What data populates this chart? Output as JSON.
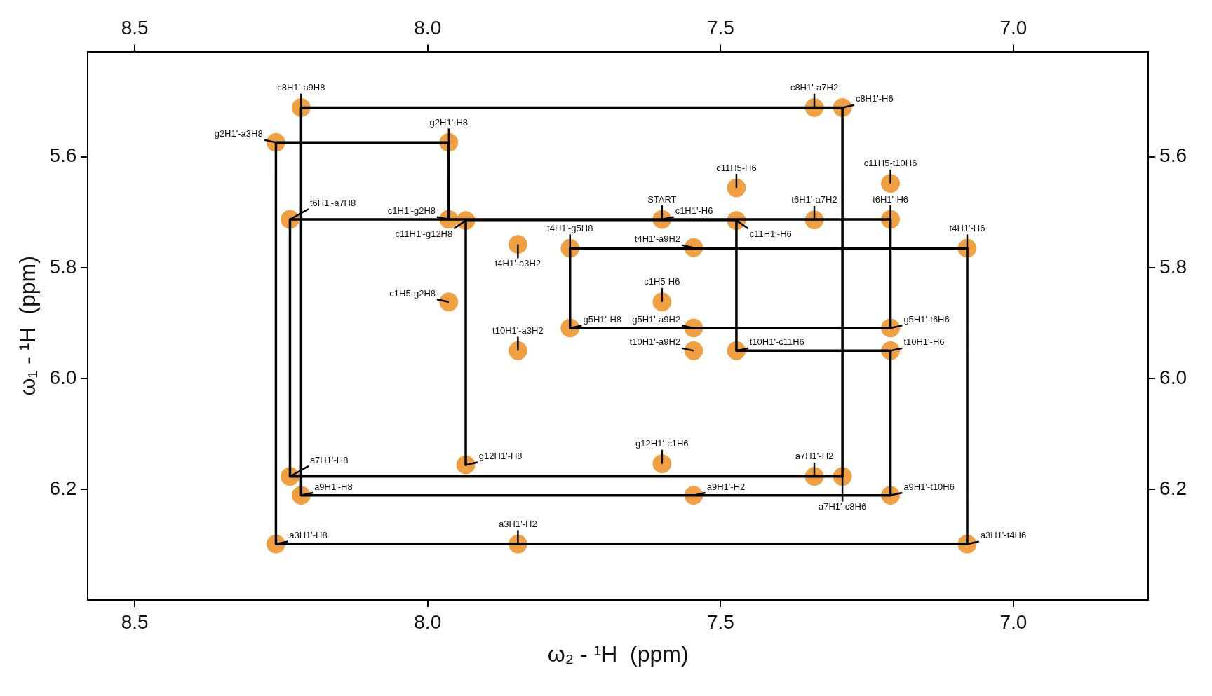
{
  "chart_data": {
    "type": "scatter",
    "xlabel": "ω₂ - ¹H  (ppm)",
    "ylabel": "ω₁ - ¹H  (ppm)",
    "xlim": [
      8.58,
      6.77
    ],
    "ylim": [
      6.4,
      5.41
    ],
    "xticks": [
      8.5,
      {
        "value": 8,
        "label": "8.0"
      },
      7.5,
      {
        "value": 7,
        "label": "7.0"
      }
    ],
    "x2lim": [
      8.58,
      6.77
    ],
    "x2ticks": [
      8.5,
      {
        "value": 8,
        "label": "8.0"
      },
      7.5,
      {
        "value": 7,
        "label": "7.0"
      }
    ],
    "yticks": [
      5.6,
      5.8,
      {
        "value": 6,
        "label": "6.0"
      },
      6.2
    ],
    "y2lim": [
      6.4,
      5.41
    ],
    "y2ticks": [
      5.6,
      5.8,
      {
        "value": 6,
        "label": "6.0"
      },
      6.2
    ],
    "grid": false,
    "legend": false,
    "series": [
      {
        "type": "scatter",
        "color": "#f0a040",
        "marker": "circle",
        "x": [
          8.216,
          8.259,
          7.964,
          8.235,
          7.964,
          7.935,
          7.6,
          7.473,
          7.34,
          7.21,
          7.473,
          7.21,
          7.34,
          7.292,
          7.079,
          7.757,
          7.846,
          7.546,
          7.964,
          7.6,
          7.757,
          7.546,
          7.21,
          7.546,
          7.473,
          7.21,
          7.846,
          7.935,
          7.6,
          8.235,
          7.34,
          7.292,
          8.216,
          7.546,
          7.21,
          8.259,
          7.846,
          7.079
        ],
        "values": [
          5.511,
          5.574,
          5.574,
          5.713,
          5.713,
          5.715,
          5.713,
          5.715,
          5.714,
          5.713,
          5.656,
          5.648,
          5.511,
          5.511,
          5.765,
          5.765,
          5.758,
          5.764,
          5.862,
          5.862,
          5.909,
          5.909,
          5.909,
          5.95,
          5.95,
          5.95,
          5.95,
          6.156,
          6.154,
          6.177,
          6.177,
          6.177,
          6.211,
          6.211,
          6.211,
          6.299,
          6.299,
          6.299
        ]
      },
      {
        "type": "line",
        "color": "#000000",
        "marker": "none",
        "line_style": "solid",
        "x": [
          7.6,
          7.964,
          7.964,
          8.259,
          8.259,
          7.079,
          7.079,
          7.757,
          7.757,
          7.21,
          7.21,
          8.235,
          8.235,
          7.292,
          7.292,
          8.216,
          8.216,
          7.21,
          7.21,
          7.473,
          7.473,
          7.935,
          7.935
        ],
        "values": [
          5.713,
          5.713,
          5.574,
          5.574,
          6.299,
          6.299,
          5.765,
          5.765,
          5.909,
          5.909,
          5.713,
          5.713,
          6.177,
          6.177,
          5.511,
          5.511,
          6.211,
          6.211,
          5.95,
          5.95,
          5.715,
          5.715,
          6.156
        ]
      }
    ],
    "annotations": [
      {
        "text": "START",
        "x": 7.6,
        "y": 5.713
      },
      {
        "text": "c8H1'-a9H8",
        "x": 8.216,
        "y": 5.511
      },
      {
        "text": "g2H1'-a3H8",
        "x": 8.259,
        "y": 5.574
      },
      {
        "text": "g2H1'-H8",
        "x": 7.964,
        "y": 5.574
      },
      {
        "text": "t6H1'-a7H8",
        "x": 8.235,
        "y": 5.713
      },
      {
        "text": "c1H1'-g2H8",
        "x": 7.964,
        "y": 5.713
      },
      {
        "text": "c11H1'-g12H8",
        "x": 7.935,
        "y": 5.715
      },
      {
        "text": "c1H1'-H6",
        "x": 7.6,
        "y": 5.713
      },
      {
        "text": "c11H1'-H6",
        "x": 7.473,
        "y": 5.715
      },
      {
        "text": "t6H1'-a7H2",
        "x": 7.34,
        "y": 5.714
      },
      {
        "text": "t6H1'-H6",
        "x": 7.21,
        "y": 5.713
      },
      {
        "text": "c11H5-H6",
        "x": 7.473,
        "y": 5.656
      },
      {
        "text": "c11H5-t10H6",
        "x": 7.21,
        "y": 5.648
      },
      {
        "text": "c8H1'-a7H2",
        "x": 7.34,
        "y": 5.511
      },
      {
        "text": "c8H1'-H6",
        "x": 7.292,
        "y": 5.511
      },
      {
        "text": "t4H1'-H6",
        "x": 7.079,
        "y": 5.765
      },
      {
        "text": "t4H1'-g5H8",
        "x": 7.757,
        "y": 5.765
      },
      {
        "text": "t4H1'-a3H2",
        "x": 7.846,
        "y": 5.758
      },
      {
        "text": "t4H1'-a9H2",
        "x": 7.546,
        "y": 5.764
      },
      {
        "text": "c1H5-g2H8",
        "x": 7.964,
        "y": 5.862
      },
      {
        "text": "c1H5-H6",
        "x": 7.6,
        "y": 5.862
      },
      {
        "text": "g5H1'-H8",
        "x": 7.757,
        "y": 5.909
      },
      {
        "text": "g5H1'-a9H2",
        "x": 7.546,
        "y": 5.909
      },
      {
        "text": "g5H1'-t6H6",
        "x": 7.21,
        "y": 5.909
      },
      {
        "text": "t10H1'-a9H2",
        "x": 7.546,
        "y": 5.95
      },
      {
        "text": "t10H1'-c11H6",
        "x": 7.473,
        "y": 5.95
      },
      {
        "text": "t10H1'-H6",
        "x": 7.21,
        "y": 5.95
      },
      {
        "text": "t10H1'-a3H2",
        "x": 7.846,
        "y": 5.95
      },
      {
        "text": "g12H1'-H8",
        "x": 7.935,
        "y": 6.156
      },
      {
        "text": "g12H1'-c1H6",
        "x": 7.6,
        "y": 6.154
      },
      {
        "text": "a7H1'-H8",
        "x": 8.235,
        "y": 6.177
      },
      {
        "text": "a7H1'-H2",
        "x": 7.34,
        "y": 6.177
      },
      {
        "text": "a7H1'-c8H6",
        "x": 7.292,
        "y": 6.177
      },
      {
        "text": "a9H1'-H8",
        "x": 8.216,
        "y": 6.211
      },
      {
        "text": "a9H1'-H2",
        "x": 7.546,
        "y": 6.211
      },
      {
        "text": "a9H1'-t10H6",
        "x": 7.21,
        "y": 6.211
      },
      {
        "text": "a3H1'-H8",
        "x": 8.259,
        "y": 6.299
      },
      {
        "text": "a3H1'-H2",
        "x": 7.846,
        "y": 6.299
      },
      {
        "text": "a3H1'-t4H6",
        "x": 7.079,
        "y": 6.299
      }
    ]
  }
}
